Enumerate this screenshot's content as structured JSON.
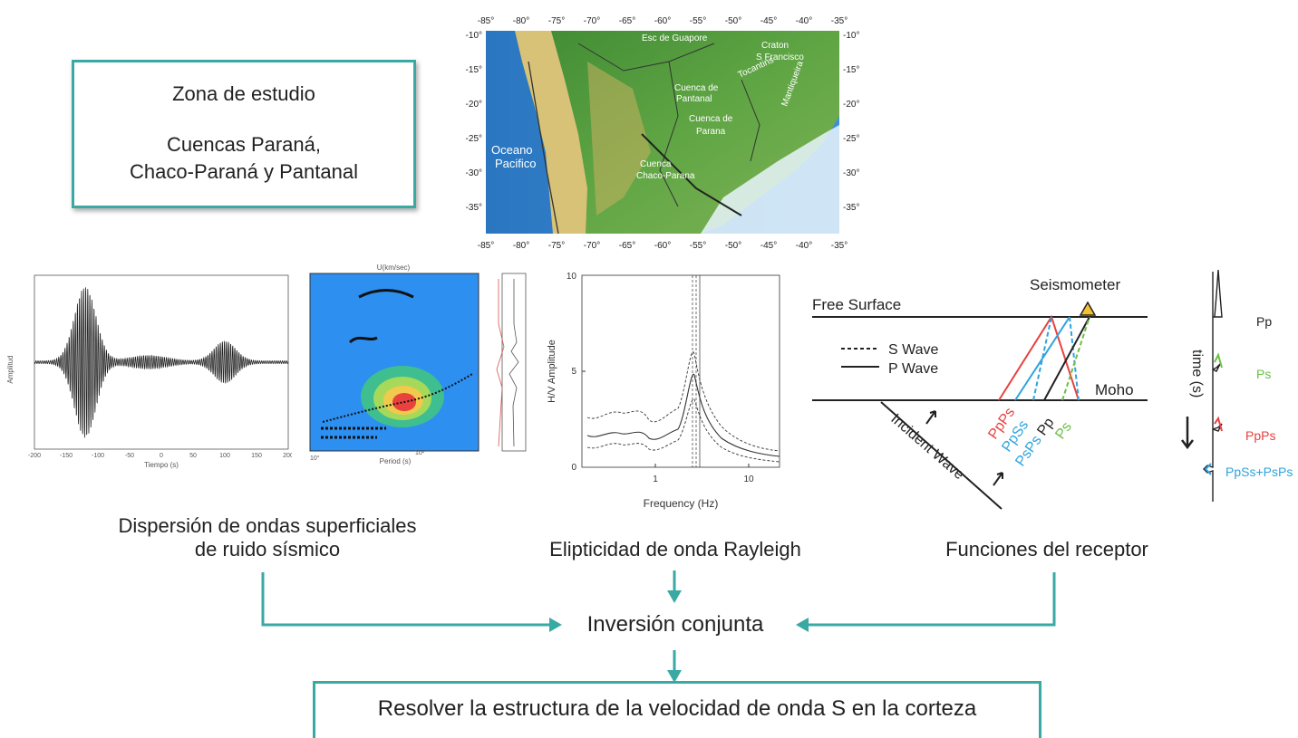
{
  "study_box": {
    "title": "Zona de estudio",
    "line1": "Cuencas Paraná,",
    "line2": "Chaco-Paraná y Pantanal"
  },
  "map": {
    "lon_labels": [
      "-85°",
      "-80°",
      "-75°",
      "-70°",
      "-65°",
      "-60°",
      "-55°",
      "-50°",
      "-45°",
      "-40°",
      "-35°"
    ],
    "lat_labels": [
      "-10°",
      "-15°",
      "-20°",
      "-25°",
      "-30°",
      "-35°"
    ],
    "regions": {
      "guapore": "Esc de Guapore",
      "craton1": "Craton",
      "craton2": "S Francisco",
      "tocantins": "Tocantins",
      "pantanal1": "Cuenca de",
      "pantanal2": "Pantanal",
      "mantiqueira": "Mantiqueira",
      "parana1": "Cuenca de",
      "parana2": "Parana",
      "ocean1": "Oceano",
      "ocean2": "Pacifico",
      "chaco1": "Cuenca",
      "chaco2": "Chaco-Parana"
    },
    "colors": {
      "ocean": "#2f7fc8",
      "land_low": "#4f9a3c",
      "land_high": "#d8c277"
    }
  },
  "seismogram": {
    "xlabel": "Tiempo (s)",
    "ylabel": "Amplitud",
    "xticks": [
      "-200",
      "-150",
      "-100",
      "-50",
      "0",
      "50",
      "100",
      "150",
      "200"
    ]
  },
  "dispersion": {
    "title": "U(km/sec)",
    "xlabel": "Period (s)",
    "xticks": [
      "10°",
      "10¹"
    ]
  },
  "hv_chart": {
    "xlabel": "Frequency (Hz)",
    "ylabel": "H/V Amplitude",
    "yticks": [
      "0",
      "5",
      "10"
    ],
    "xticks": [
      "1",
      "10"
    ]
  },
  "rf": {
    "free_surface": "Free Surface",
    "seismometer": "Seismometer",
    "s_wave": "S Wave",
    "p_wave": "P Wave",
    "moho": "Moho",
    "incident_wave": "Incident Wave",
    "phase_ppps": "PpPs",
    "phase_ppss": "PpSs",
    "phase_psps": "PsPs",
    "phase_pp": "Pp",
    "phase_ps": "Ps",
    "colors": {
      "red": "#e8413e",
      "blue": "#2ea3dd",
      "green": "#6cbe45"
    }
  },
  "trace": {
    "time_label": "time (s)",
    "pp": "Pp",
    "ps": "Ps",
    "ppps": "PpPs",
    "ppss_psps": "PpSs+PsPs"
  },
  "captions": {
    "dispersion_line1": "Dispersión de ondas superficiales",
    "dispersion_line2": "de ruido sísmico",
    "ellipticity": "Elipticidad de onda Rayleigh",
    "receiver": "Funciones del receptor"
  },
  "joint": "Inversión conjunta",
  "result": "Resolver la estructura de la velocidad de onda S en la corteza",
  "accent": "#3aa9a3"
}
